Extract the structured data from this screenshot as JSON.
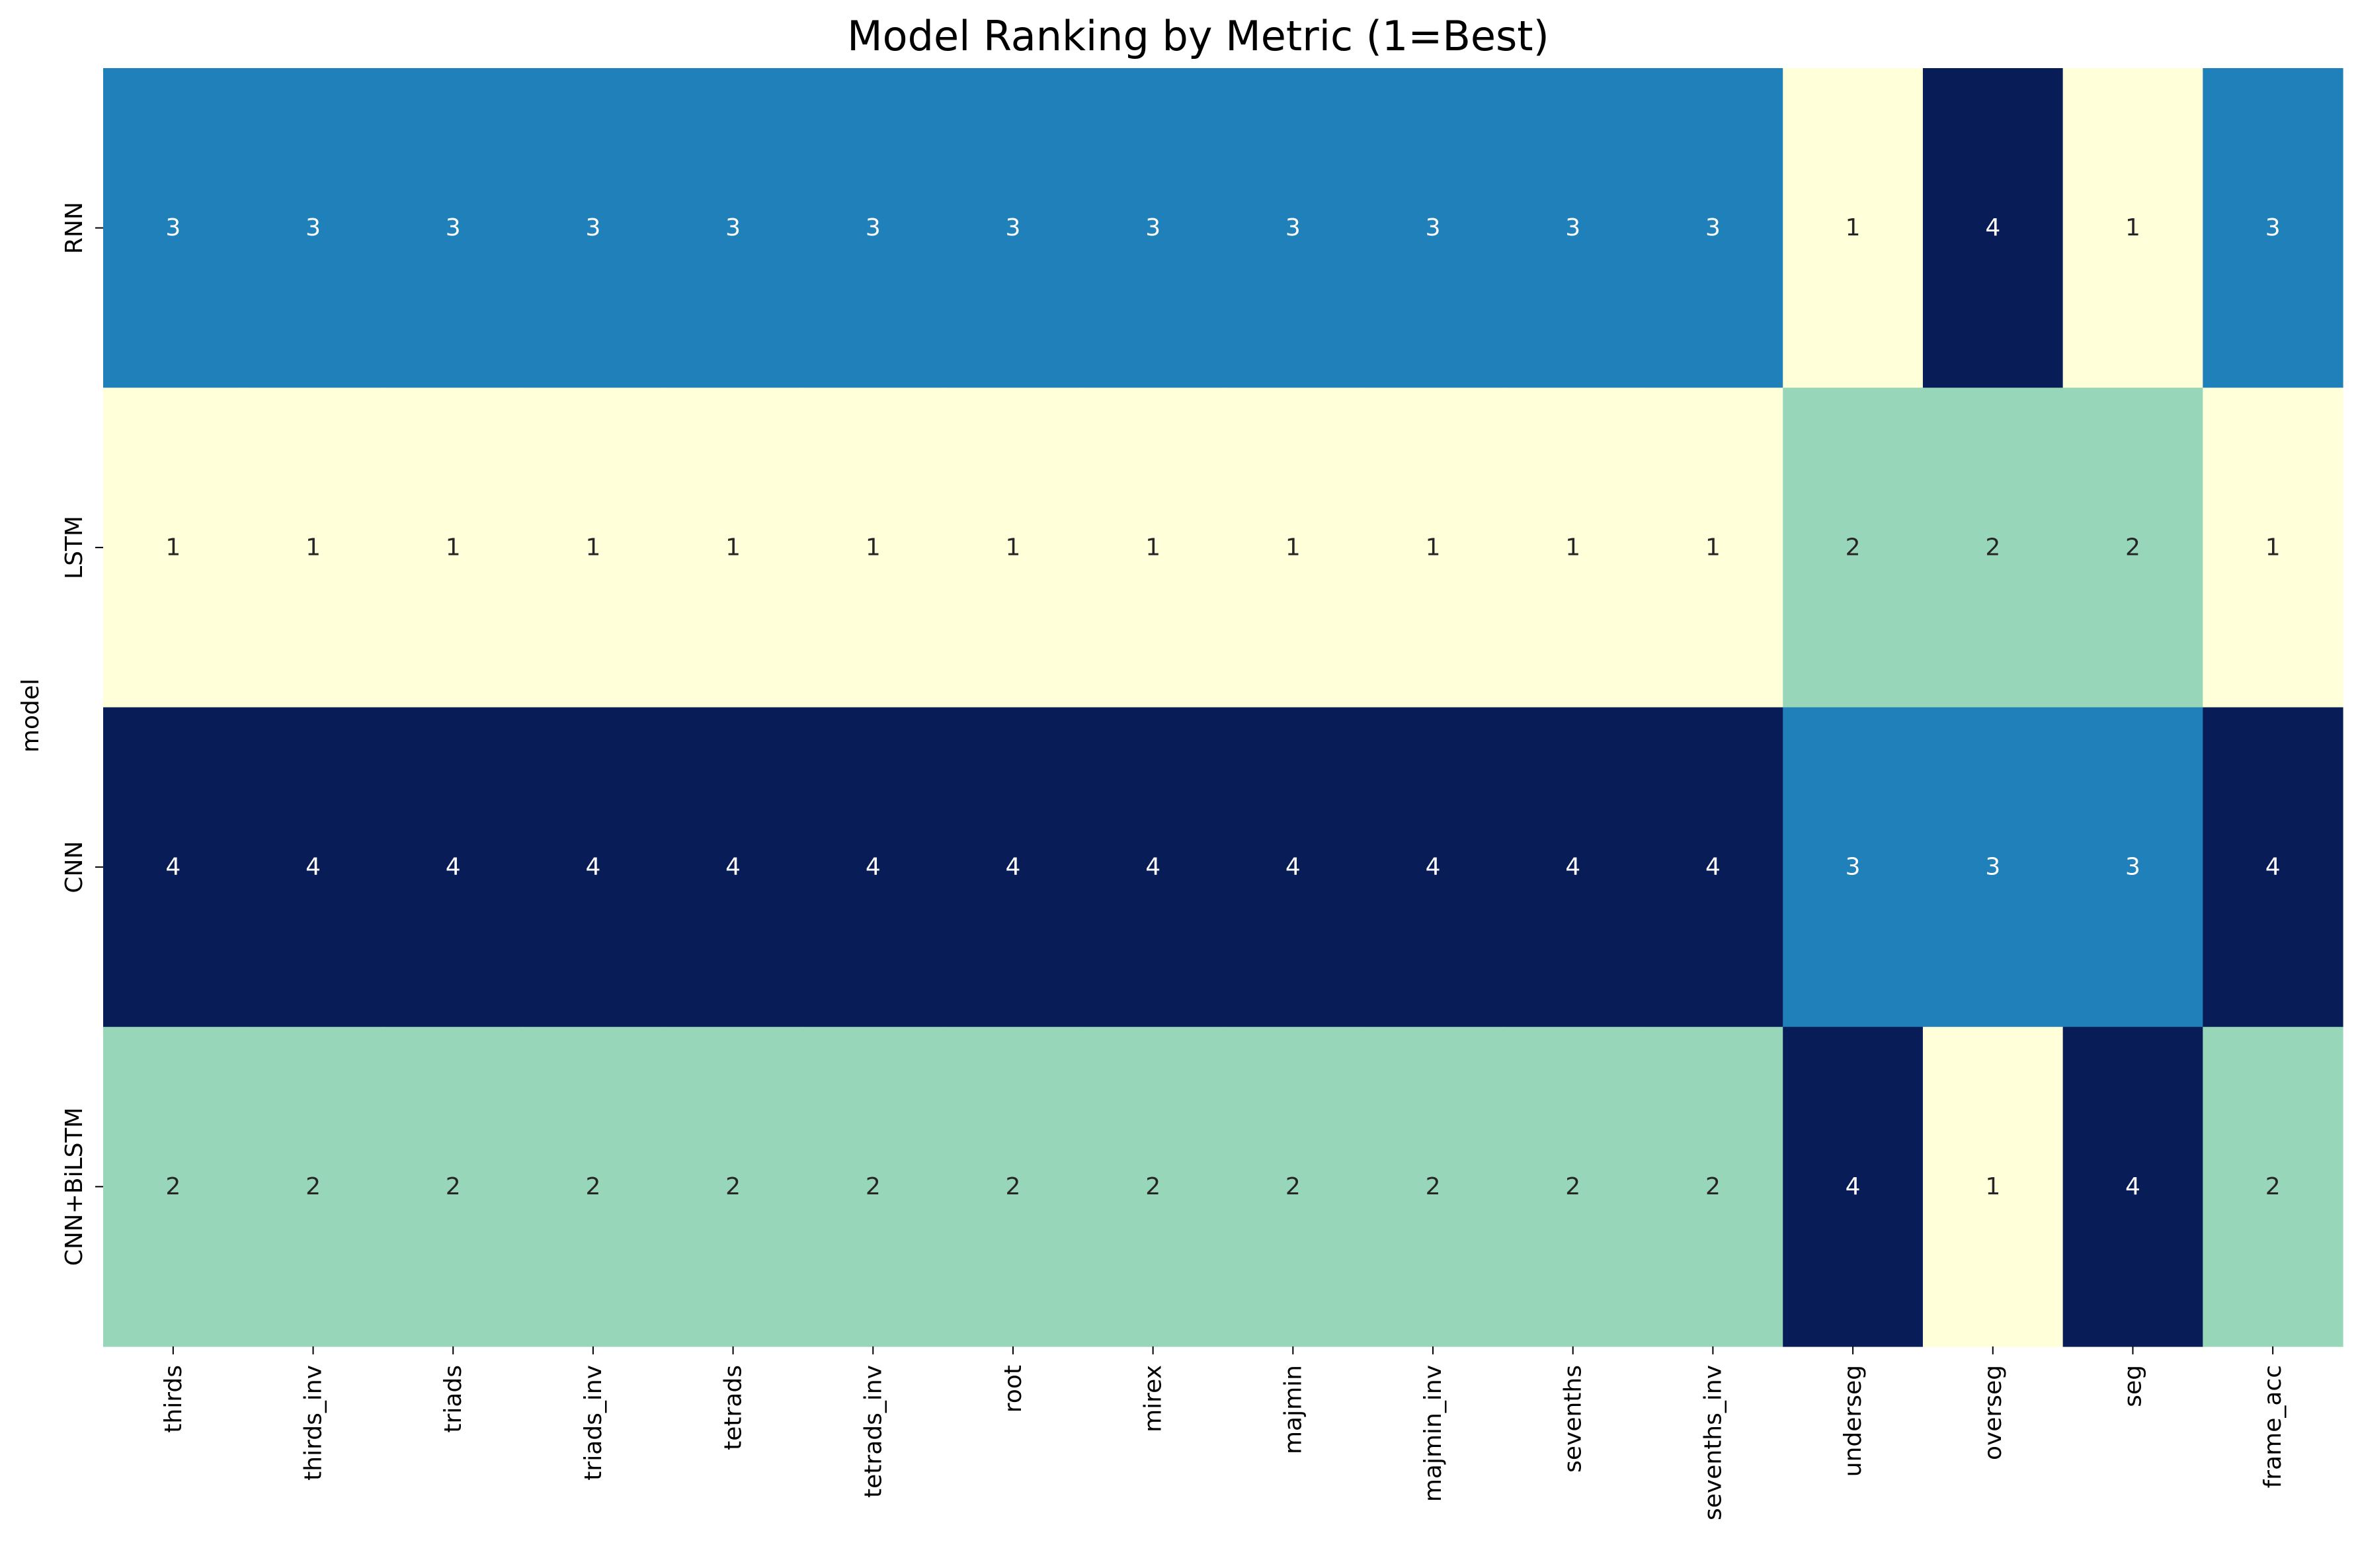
{
  "chart_data": {
    "type": "heatmap",
    "title": "Model Ranking by Metric (1=Best)",
    "xlabel": "",
    "ylabel": "model",
    "rows": [
      "RNN",
      "LSTM",
      "CNN",
      "CNN+BiLSTM"
    ],
    "columns": [
      "thirds",
      "thirds_inv",
      "triads",
      "triads_inv",
      "tetrads",
      "tetrads_inv",
      "root",
      "mirex",
      "majmin",
      "majmin_inv",
      "sevenths",
      "sevenths_inv",
      "underseg",
      "overseg",
      "seg",
      "frame_acc"
    ],
    "values": [
      [
        3,
        3,
        3,
        3,
        3,
        3,
        3,
        3,
        3,
        3,
        3,
        3,
        1,
        4,
        1,
        3
      ],
      [
        1,
        1,
        1,
        1,
        1,
        1,
        1,
        1,
        1,
        1,
        1,
        1,
        2,
        2,
        2,
        1
      ],
      [
        4,
        4,
        4,
        4,
        4,
        4,
        4,
        4,
        4,
        4,
        4,
        4,
        3,
        3,
        3,
        4
      ],
      [
        2,
        2,
        2,
        2,
        2,
        2,
        2,
        2,
        2,
        2,
        2,
        2,
        4,
        1,
        4,
        2
      ]
    ],
    "value_range": [
      1,
      4
    ],
    "colormap": "YlGnBu",
    "colors": {
      "1": "#ffffd9",
      "2": "#97d6b9",
      "3": "#2080b9",
      "4": "#081d58"
    },
    "label_colors": {
      "light_bg": "#262626",
      "dark_bg": "#ffffff"
    },
    "colorbar": false,
    "grid": false
  }
}
